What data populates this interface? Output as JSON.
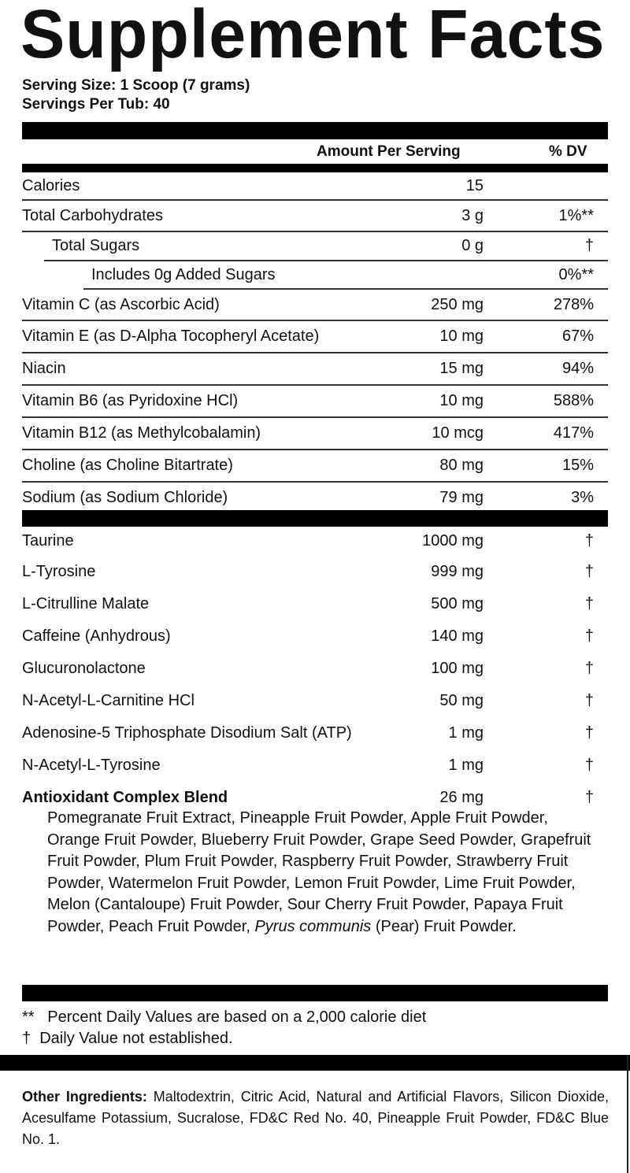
{
  "title": "Supplement Facts",
  "serving_size": "Serving Size: 1 Scoop (7 grams)",
  "servings_per": "Servings Per Tub: 40",
  "header": {
    "amount": "Amount Per Serving",
    "dv": "% DV"
  },
  "nutrients": [
    {
      "name": "Calories",
      "amount": "15",
      "dv": ""
    },
    {
      "name": "Total Carbohydrates",
      "amount": "3 g",
      "dv": "1%**"
    },
    {
      "name": "Total Sugars",
      "amount": "0 g",
      "dv": "†",
      "indent": 1
    },
    {
      "name": "Includes 0g Added Sugars",
      "amount": "",
      "dv": "0%**",
      "indent": 2
    },
    {
      "name": "Vitamin C (as Ascorbic Acid)",
      "amount": "250 mg",
      "dv": "278%"
    },
    {
      "name": "Vitamin E (as D-Alpha Tocopheryl Acetate)",
      "amount": "10 mg",
      "dv": "67%"
    },
    {
      "name": "Niacin",
      "amount": "15 mg",
      "dv": "94%"
    },
    {
      "name": "Vitamin B6 (as Pyridoxine HCl)",
      "amount": "10 mg",
      "dv": "588%"
    },
    {
      "name": "Vitamin B12 (as Methylcobalamin)",
      "amount": "10 mcg",
      "dv": "417%"
    },
    {
      "name": "Choline (as Choline Bitartrate)",
      "amount": "80 mg",
      "dv": "15%"
    },
    {
      "name": "Sodium (as Sodium Chloride)",
      "amount": "79 mg",
      "dv": "3%"
    }
  ],
  "ingredients": [
    {
      "name": "Taurine",
      "amount": "1000 mg",
      "dv": "†"
    },
    {
      "name": "L-Tyrosine",
      "amount": "999 mg",
      "dv": "†"
    },
    {
      "name": "L-Citrulline Malate",
      "amount": "500 mg",
      "dv": "†"
    },
    {
      "name": "Caffeine (Anhydrous)",
      "amount": "140 mg",
      "dv": "†"
    },
    {
      "name": "Glucuronolactone",
      "amount": "100 mg",
      "dv": "†"
    },
    {
      "name": "N-Acetyl-L-Carnitine HCl",
      "amount": "50 mg",
      "dv": "†"
    },
    {
      "name": "Adenosine-5 Triphosphate Disodium Salt (ATP)",
      "amount": "1 mg",
      "dv": "†"
    },
    {
      "name": "N-Acetyl-L-Tyrosine",
      "amount": "1 mg",
      "dv": "†"
    },
    {
      "name": "Antioxidant Complex Blend",
      "amount": "26 mg",
      "dv": "†",
      "bold": true
    }
  ],
  "blend": {
    "text_before": "Pomegranate Fruit Extract, Pineapple Fruit Powder, Apple Fruit Powder, Orange Fruit Powder, Blueberry Fruit Powder, Grape Seed Powder, Grapefruit Fruit Powder, Plum Fruit Powder, Raspberry Fruit Powder, Strawberry Fruit Powder, Watermelon Fruit Powder, Lemon Fruit Powder, Lime Fruit Powder, Melon (Cantaloupe) Fruit Powder, Sour Cherry Fruit Powder, Papaya Fruit Powder, Peach Fruit Powder, ",
    "italic": "Pyrus communis",
    "text_after": " (Pear) Fruit Powder."
  },
  "footnotes": {
    "dv_note": "**   Percent Daily Values are based on a 2,000 calorie diet",
    "dagger_note": "†  Daily Value not established."
  },
  "other_ingredients": {
    "label": "Other Ingredients:",
    "text": " Maltodextrin, Citric Acid, Natural and Artificial Flavors, Silicon Dioxide, Acesulfame Potassium, Sucralose, FD&C Red No. 40, Pineapple Fruit Powder, FD&C Blue No. 1."
  }
}
